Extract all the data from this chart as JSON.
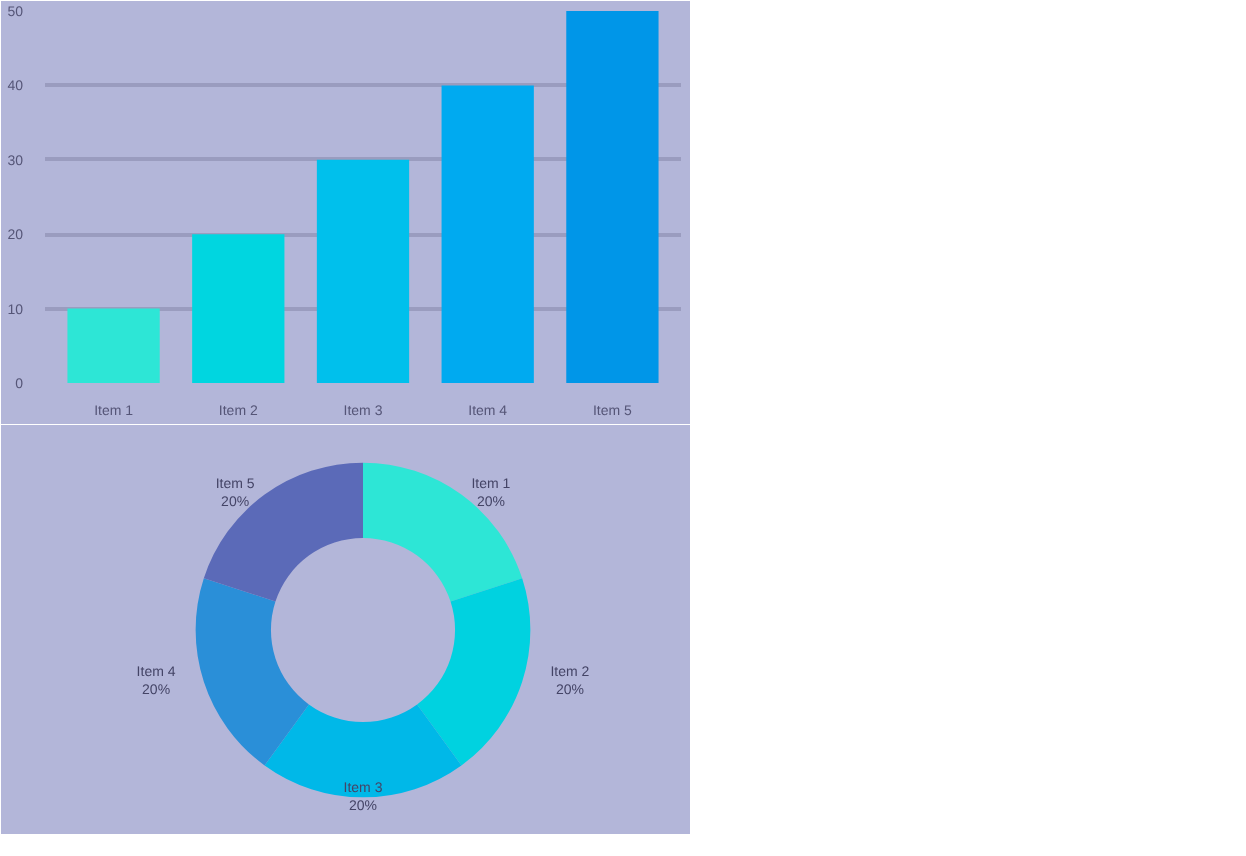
{
  "chart_data": [
    {
      "type": "bar",
      "categories": [
        "Item 1",
        "Item 2",
        "Item 3",
        "Item 4",
        "Item 5"
      ],
      "values": [
        10,
        20,
        30,
        40,
        50
      ],
      "colors": [
        "#2de6d6",
        "#00d6e0",
        "#00c0ec",
        "#00aaf0",
        "#0096e8"
      ],
      "ylim": [
        0,
        50
      ],
      "yticks": [
        0,
        10,
        20,
        30,
        40,
        50
      ],
      "grid": "y"
    },
    {
      "type": "donut",
      "categories": [
        "Item 1",
        "Item 2",
        "Item 3",
        "Item 4",
        "Item 5"
      ],
      "values": [
        20,
        20,
        20,
        20,
        20
      ],
      "colors": [
        "#2de6d6",
        "#00d2e0",
        "#00b8e8",
        "#2a8fd8",
        "#5b6ab8"
      ],
      "value_labels": [
        "20%",
        "20%",
        "20%",
        "20%",
        "20%"
      ]
    }
  ]
}
